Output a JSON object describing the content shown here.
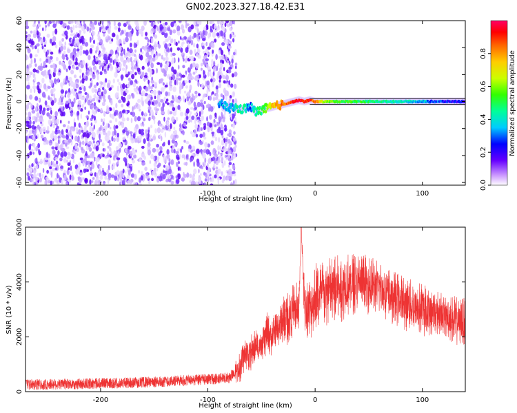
{
  "title": "GN02.2023.327.18.42.E31",
  "chart_data": [
    {
      "type": "heatmap",
      "xlabel": "Height of straight line (km)",
      "ylabel": "Frequency (Hz)",
      "xlim": [
        -270,
        140
      ],
      "ylim": [
        -62,
        60
      ],
      "x_ticks": [
        -200,
        -100,
        0,
        100
      ],
      "y_ticks": [
        -60,
        -40,
        -20,
        0,
        20,
        40,
        60
      ],
      "y_tick_labels": [
        "-60",
        "-40",
        "-20",
        "0",
        "20",
        "40",
        "60"
      ],
      "noise_region_x": [
        -270,
        -80
      ],
      "signal_track": {
        "x": [
          -90,
          -85,
          -80,
          -75,
          -70,
          -65,
          -60,
          -55,
          -50,
          -45,
          -40,
          -35,
          -30,
          -25,
          -20,
          -15,
          -10,
          -5,
          0,
          10,
          20,
          40,
          60,
          80,
          100,
          120,
          140
        ],
        "freq": [
          -1,
          -3,
          -5,
          -4,
          -6,
          -5,
          -4,
          -8,
          -6,
          -5,
          -4,
          -3,
          -2,
          -1,
          0,
          1,
          0,
          1,
          0,
          0,
          0,
          0,
          0,
          0,
          0,
          0,
          0
        ],
        "amplitude": [
          0.3,
          0.35,
          0.4,
          0.35,
          0.45,
          0.4,
          0.3,
          0.45,
          0.5,
          0.6,
          0.75,
          0.8,
          0.85,
          0.85,
          0.9,
          0.95,
          0.9,
          0.9,
          0.85,
          0.6,
          0.55,
          0.5,
          0.45,
          0.4,
          0.35,
          0.25,
          0.2
        ]
      },
      "colorbar": {
        "label": "Normalized spectral amplitude",
        "range": [
          0,
          1
        ],
        "ticks": [
          "0.0",
          "0.2",
          "0.4",
          "0.6",
          "0.8"
        ],
        "colors": [
          "#ffffff",
          "#9933ff",
          "#0000ff",
          "#00ffff",
          "#00ff00",
          "#ffff00",
          "#ff9900",
          "#ff0000",
          "#ff0066"
        ]
      },
      "grid": false
    },
    {
      "type": "line",
      "xlabel": "Height of straight line (km)",
      "ylabel": "SNR (10 * v/v)",
      "xlim": [
        -270,
        140
      ],
      "ylim": [
        0,
        6000
      ],
      "x_ticks": [
        -200,
        -100,
        0,
        100
      ],
      "y_ticks": [
        0,
        2000,
        4000,
        6000
      ],
      "line_color": "#ee3333",
      "series": [
        {
          "x": [
            -270,
            -200,
            -150,
            -100,
            -80,
            -70,
            -65,
            -60,
            -55,
            -50,
            -45,
            -40,
            -35,
            -30,
            -25,
            -20,
            -15,
            -13,
            -10,
            -5,
            0,
            5,
            10,
            20,
            30,
            40,
            50,
            60,
            70,
            80,
            90,
            100,
            110,
            120,
            130,
            140
          ],
          "y": [
            250,
            300,
            350,
            450,
            500,
            900,
            1400,
            1400,
            1700,
            1600,
            2100,
            2000,
            2300,
            2600,
            2700,
            3000,
            3000,
            6000,
            3200,
            3000,
            3400,
            3500,
            3600,
            3700,
            3900,
            4000,
            3900,
            3800,
            3500,
            3300,
            3100,
            3000,
            2900,
            2800,
            2600,
            2500
          ],
          "envelope": [
            350,
            400,
            450,
            550,
            700,
            1500,
            2000,
            2100,
            2300,
            2100,
            2900,
            2700,
            3000,
            3500,
            3700,
            4000,
            4000,
            6000,
            4300,
            4200,
            4800,
            4800,
            4900,
            5000,
            5100,
            5100,
            5000,
            4800,
            4500,
            4300,
            4100,
            4000,
            3800,
            3600,
            3500,
            3400
          ]
        }
      ],
      "grid": false
    }
  ]
}
